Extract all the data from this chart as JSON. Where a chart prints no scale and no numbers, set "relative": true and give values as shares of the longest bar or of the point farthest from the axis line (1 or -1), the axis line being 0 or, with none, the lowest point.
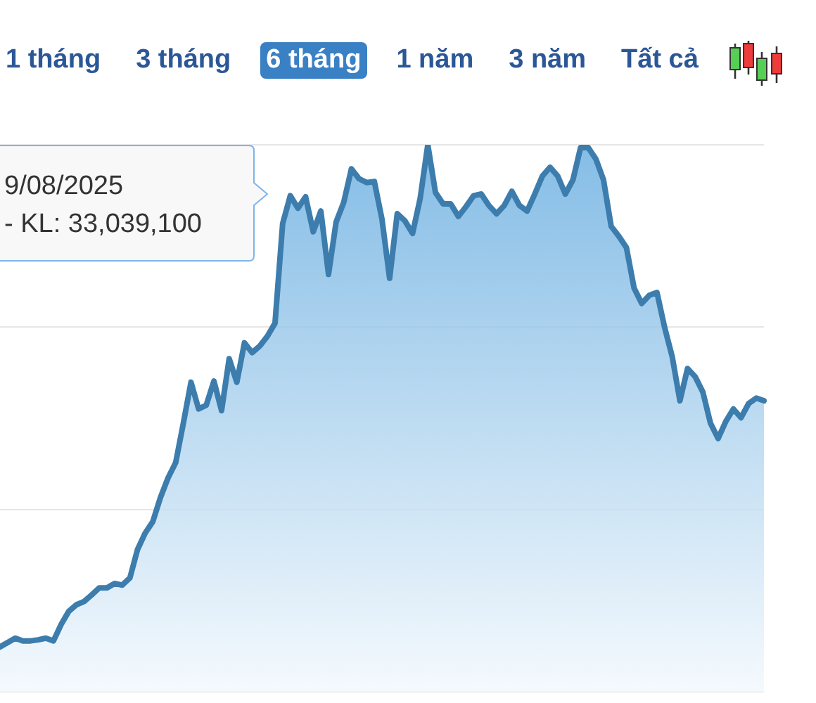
{
  "chart_data": {
    "type": "area",
    "relative": true,
    "categories": [
      null,
      null,
      null,
      null,
      null,
      null,
      null,
      null,
      null,
      null,
      null,
      null,
      null,
      null,
      null,
      null,
      null,
      null,
      null,
      null,
      null,
      null,
      null,
      null,
      null,
      null,
      null,
      null,
      null,
      null,
      null,
      null,
      null,
      null,
      null,
      null,
      null,
      null,
      null,
      null,
      null,
      null,
      null,
      null,
      null,
      null,
      null,
      null,
      null,
      null,
      null,
      null,
      null,
      null,
      null,
      null,
      null,
      null,
      null,
      null,
      null,
      null,
      null,
      null,
      null,
      null,
      null,
      null,
      null,
      null,
      null,
      null,
      null,
      null,
      null,
      null,
      null,
      null,
      null,
      null,
      null,
      null,
      null,
      null,
      null,
      null,
      null,
      null,
      null,
      null,
      null,
      null,
      null,
      null,
      null,
      null,
      null,
      null,
      null,
      null,
      null
    ],
    "values": [
      0.082,
      0.09,
      0.098,
      0.093,
      0.093,
      0.095,
      0.098,
      0.093,
      0.123,
      0.147,
      0.159,
      0.165,
      0.177,
      0.19,
      0.19,
      0.198,
      0.195,
      0.208,
      0.26,
      0.29,
      0.311,
      0.355,
      0.391,
      0.419,
      0.491,
      0.566,
      0.517,
      0.524,
      0.568,
      0.514,
      0.609,
      0.566,
      0.638,
      0.62,
      0.632,
      0.65,
      0.674,
      0.856,
      0.907,
      0.884,
      0.905,
      0.841,
      0.879,
      0.763,
      0.859,
      0.895,
      0.956,
      0.938,
      0.931,
      0.933,
      0.864,
      0.756,
      0.874,
      0.861,
      0.838,
      0.902,
      1,
      0.913,
      0.892,
      0.892,
      0.869,
      0.887,
      0.907,
      0.91,
      0.889,
      0.874,
      0.889,
      0.915,
      0.889,
      0.879,
      0.91,
      0.943,
      0.959,
      0.943,
      0.91,
      0.936,
      0.995,
      0.995,
      0.974,
      0.936,
      0.851,
      0.833,
      0.812,
      0.738,
      0.71,
      0.725,
      0.73,
      0.666,
      0.612,
      0.532,
      0.591,
      0.576,
      0.548,
      0.491,
      0.463,
      0.494,
      0.517,
      0.501,
      0.527,
      0.537,
      0.532
    ],
    "color": "#3c7dad",
    "grid": "y",
    "marker": "none",
    "tick_labels": false,
    "ref_lines": [
      {
        "axis": "y",
        "value": 0.333,
        "color": "#e6e6e6"
      },
      {
        "axis": "y",
        "value": 0.667,
        "color": "#e6e6e6"
      }
    ],
    "annotations": [
      "1 tháng",
      "3 tháng",
      "6 tháng",
      "1 năm",
      "3 năm",
      "Tất cả",
      "9/08/2025",
      "- KL: 33,039,100"
    ]
  }
}
